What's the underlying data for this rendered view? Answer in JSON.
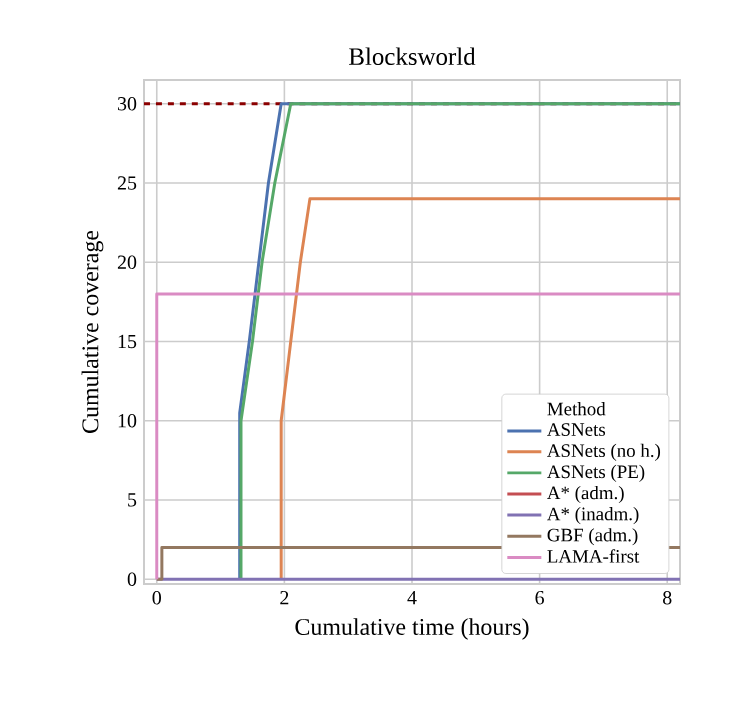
{
  "chart_data": {
    "type": "line",
    "title": "Blocksworld",
    "xlabel": "Cumulative time (hours)",
    "ylabel": "Cumulative coverage",
    "legend_title": "Method",
    "xlim": [
      -0.2,
      8.2
    ],
    "ylim": [
      -0.3,
      31.5
    ],
    "xticks": [
      0,
      2,
      4,
      6,
      8
    ],
    "yticks": [
      0,
      5,
      10,
      15,
      20,
      25,
      30
    ],
    "grid": true,
    "legend": "bottom right",
    "line_style": "solid",
    "marker": "none",
    "series": [
      {
        "name": "ASNets",
        "color": "#4c72b0",
        "x": [
          1.3,
          1.3,
          1.45,
          1.6,
          1.75,
          1.95,
          8.2
        ],
        "values": [
          0,
          10.5,
          15,
          20,
          25,
          30,
          30
        ]
      },
      {
        "name": "ASNets (no h.)",
        "color": "#dd8452",
        "x": [
          1.95,
          1.95,
          2.1,
          2.25,
          2.4,
          8.2
        ],
        "values": [
          0,
          10,
          15,
          20,
          24,
          24
        ]
      },
      {
        "name": "ASNets (PE)",
        "color": "#55a868",
        "x": [
          1.32,
          1.32,
          1.5,
          1.65,
          1.85,
          2.1,
          8.2
        ],
        "values": [
          0,
          10,
          15,
          20,
          25,
          30,
          30
        ]
      },
      {
        "name": "A* (adm.)",
        "color": "#c44e52"
      },
      {
        "name": "A* (inadm.)",
        "color": "#8172b3",
        "x": [
          0,
          8.2
        ],
        "values": [
          0,
          0
        ]
      },
      {
        "name": "GBF (adm.)",
        "color": "#937860",
        "x": [
          0,
          0.08,
          0.08,
          8.2
        ],
        "values": [
          0,
          0,
          2,
          2
        ]
      },
      {
        "name": "LAMA-first",
        "color": "#da8bc3",
        "x": [
          0,
          0,
          8.2
        ],
        "values": [
          0,
          18,
          18
        ]
      }
    ],
    "ref_lines": [
      {
        "axis": "y",
        "value": 30,
        "color": "#8b0000",
        "line_style": "dashed"
      }
    ]
  }
}
